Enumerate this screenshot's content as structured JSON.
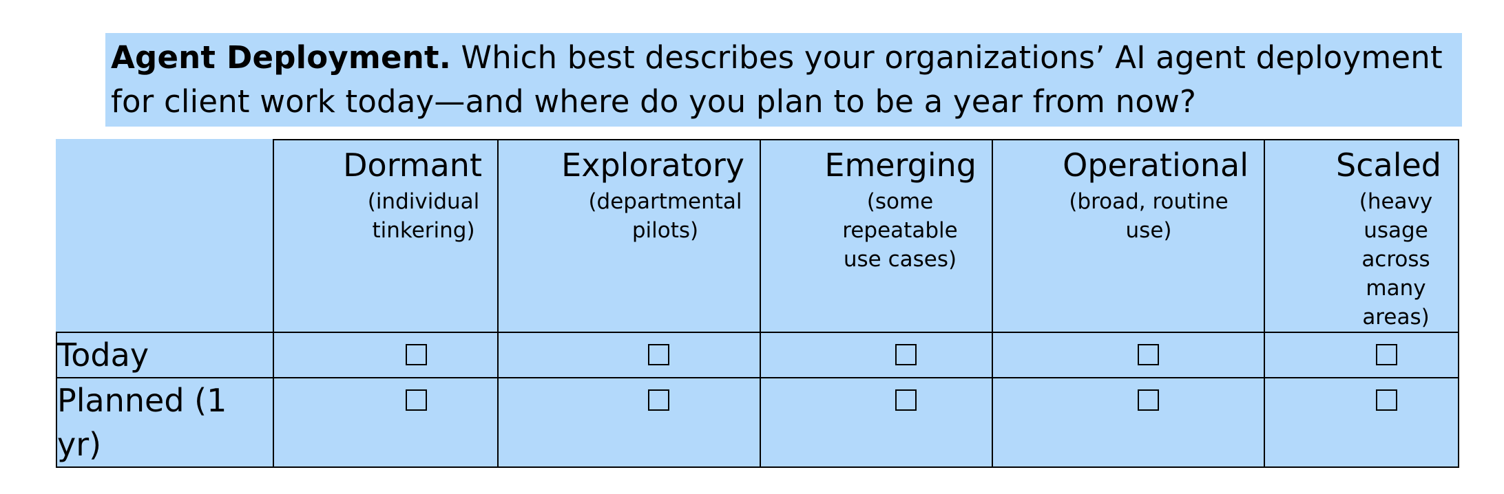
{
  "question": {
    "title": "Agent Deployment.",
    "text": "Which best describes your organizations’ AI agent deployment for client work today—and where do you plan to be a year from now?"
  },
  "columns": [
    {
      "title": "Dormant",
      "subtitle": "(individual tinkering)"
    },
    {
      "title": "Exploratory",
      "subtitle": "(departmental pilots)"
    },
    {
      "title": "Emerging",
      "subtitle": "(some repeatable use cases)"
    },
    {
      "title": "Operational",
      "subtitle": "(broad, routine use)"
    },
    {
      "title": "Scaled",
      "subtitle": "(heavy usage across many areas)"
    }
  ],
  "rows": [
    {
      "label": "Today"
    },
    {
      "label": "Planned (1 yr)"
    }
  ],
  "colors": {
    "background": "#b3d9fb",
    "border": "#000000"
  }
}
